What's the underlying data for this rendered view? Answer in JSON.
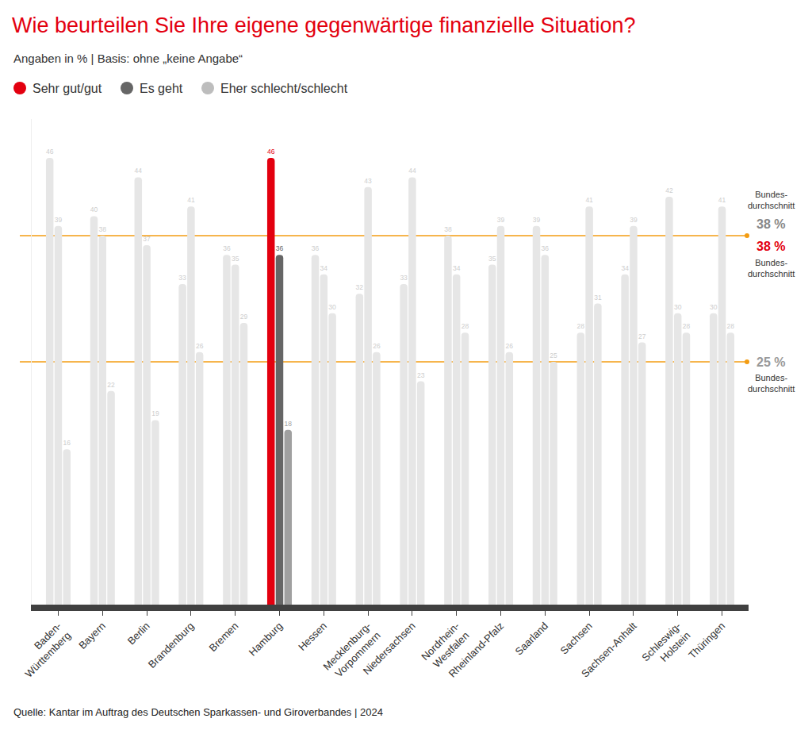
{
  "chart_data": {
    "type": "bar",
    "title": "Wie beurteilen Sie Ihre eigene gegenwärtige finanzielle Situation?",
    "subtitle": "Angaben in % | Basis: ohne „keine Angabe“",
    "source": "Quelle: Kantar im Auftrag des Deutschen Sparkassen- und Giroverbandes | 2024",
    "categories": [
      "Baden-\nWürttemberg",
      "Bayern",
      "Berlin",
      "Brandenburg",
      "Bremen",
      "Hamburg",
      "Hessen",
      "Mecklenburg-\nVorpommern",
      "Niedersachsen",
      "Nordrhein-\nWestfalen",
      "Rheinland-Pfalz",
      "Saarland",
      "Sachsen",
      "Sachsen-Anhalt",
      "Schleswig-\nHolstein",
      "Thüringen"
    ],
    "series": [
      {
        "name": "Sehr gut/gut",
        "color": "#e3000f",
        "values": [
          46,
          40,
          44,
          33,
          36,
          46,
          36,
          32,
          33,
          38,
          35,
          39,
          28,
          34,
          42,
          30
        ],
        "colors": [
          "#e6e6e6",
          "#e6e6e6",
          "#e6e6e6",
          "#e6e6e6",
          "#e6e6e6",
          "#e3000f",
          "#e6e6e6",
          "#e6e6e6",
          "#e6e6e6",
          "#e6e6e6",
          "#e6e6e6",
          "#e6e6e6",
          "#e6e6e6",
          "#e6e6e6",
          "#e6e6e6",
          "#e6e6e6"
        ]
      },
      {
        "name": "Es geht",
        "color": "#666666",
        "values": [
          39,
          38,
          37,
          41,
          35,
          36,
          34,
          43,
          44,
          34,
          39,
          36,
          41,
          39,
          30,
          41
        ],
        "colors": [
          "#e6e6e6",
          "#e6e6e6",
          "#e6e6e6",
          "#e6e6e6",
          "#e6e6e6",
          "#666666",
          "#e6e6e6",
          "#e6e6e6",
          "#e6e6e6",
          "#e6e6e6",
          "#e6e6e6",
          "#e6e6e6",
          "#e6e6e6",
          "#e6e6e6",
          "#e6e6e6",
          "#e6e6e6"
        ]
      },
      {
        "name": "Eher schlecht/schlecht",
        "color": "#bdbdbd",
        "values": [
          16,
          22,
          19,
          26,
          29,
          18,
          30,
          26,
          23,
          28,
          26,
          25,
          31,
          27,
          28,
          28
        ],
        "colors": [
          "#e6e6e6",
          "#e6e6e6",
          "#e6e6e6",
          "#e6e6e6",
          "#e6e6e6",
          "#a0a0a0",
          "#e6e6e6",
          "#e6e6e6",
          "#e6e6e6",
          "#e6e6e6",
          "#e6e6e6",
          "#e6e6e6",
          "#e6e6e6",
          "#e6e6e6",
          "#e6e6e6",
          "#e6e6e6"
        ]
      }
    ],
    "reference_lines": [
      {
        "series": "Es geht",
        "value": 38,
        "label": "38 %",
        "text": "Bundes-\ndurchschnitt"
      },
      {
        "series": "Sehr gut/gut",
        "value": 38,
        "label": "38 %",
        "text": "Bundes-\ndurchschnitt"
      },
      {
        "series": "Eher schlecht/schlecht",
        "value": 25,
        "label": "25 %",
        "text": "Bundes-\ndurchschnitt"
      }
    ],
    "ylim": [
      0,
      50
    ],
    "tick_labels": "x",
    "grid": false,
    "data_labels": true,
    "legend": "top left"
  }
}
